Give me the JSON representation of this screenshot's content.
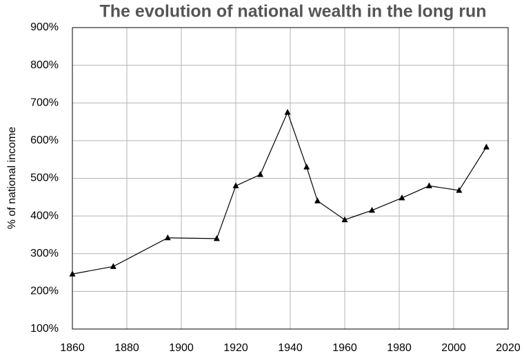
{
  "chart_data": {
    "type": "line",
    "title": "The evolution of national wealth in the long run",
    "y_label": "% of national income",
    "x": [
      1860,
      1875,
      1895,
      1913,
      1920,
      1929,
      1939,
      1946,
      1950,
      1960,
      1970,
      1981,
      1991,
      2002,
      2012
    ],
    "values": [
      246,
      266,
      342,
      340,
      480,
      510,
      675,
      530,
      440,
      390,
      415,
      448,
      480,
      468,
      583
    ],
    "color": "#000000",
    "xlim": [
      1860,
      2020
    ],
    "xticks": [
      1860,
      1880,
      1900,
      1920,
      1940,
      1960,
      1980,
      2000,
      2020
    ],
    "ylim": [
      100,
      900
    ],
    "yticks": [
      {
        "value": 100,
        "label": "100%"
      },
      {
        "value": 200,
        "label": "200%"
      },
      {
        "value": 300,
        "label": "300%"
      },
      {
        "value": 400,
        "label": "400%"
      },
      {
        "value": 500,
        "label": "500%"
      },
      {
        "value": 600,
        "label": "600%"
      },
      {
        "value": 700,
        "label": "700%"
      },
      {
        "value": 800,
        "label": "800%"
      },
      {
        "value": 900,
        "label": "900%"
      }
    ],
    "grid": true
  }
}
